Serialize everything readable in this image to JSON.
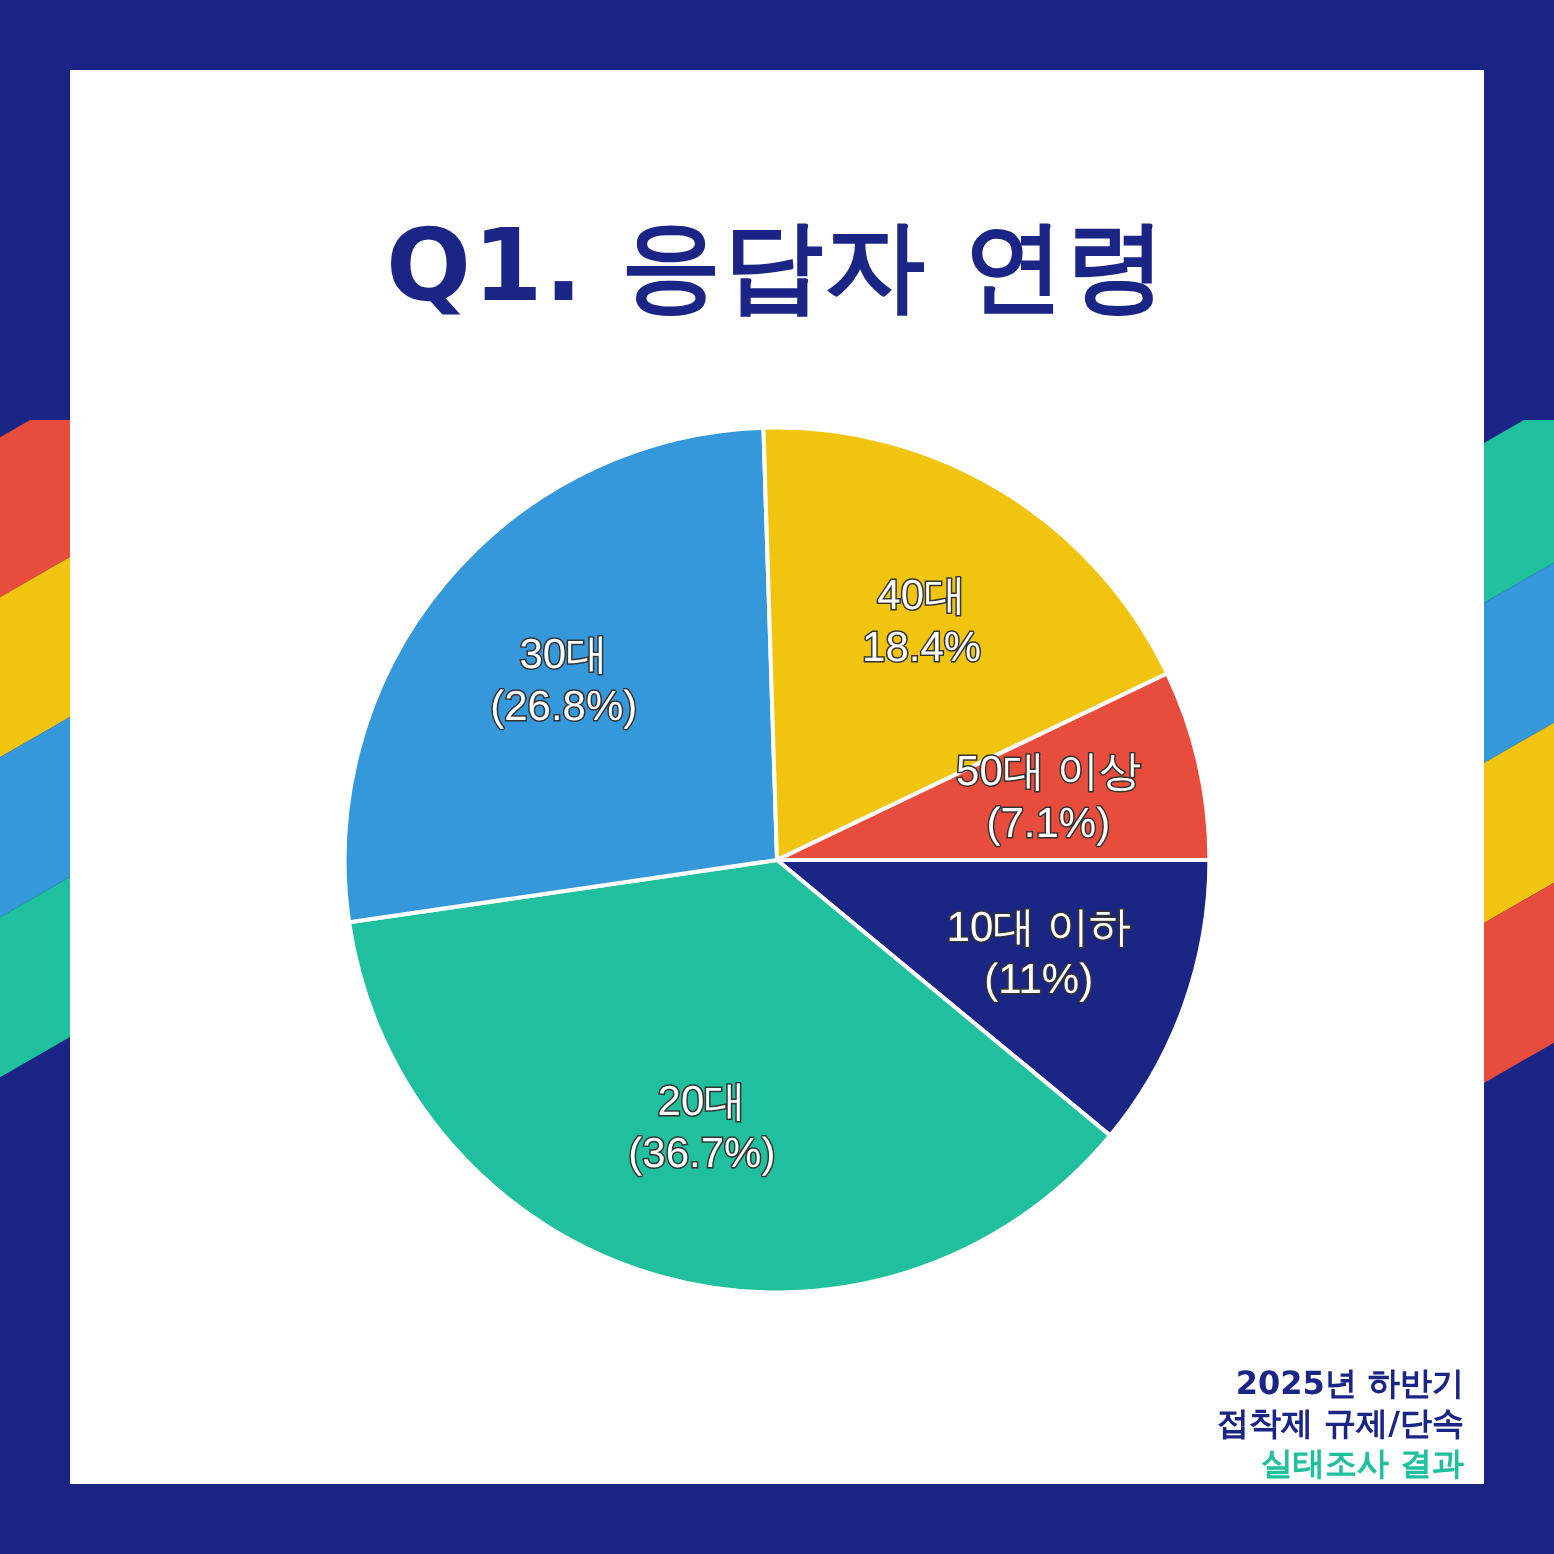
{
  "chart_data": {
    "type": "pie",
    "title": "Q1. 응답자 연령",
    "categories": [
      "10대 이하",
      "20대",
      "30대",
      "40대",
      "50대 이상"
    ],
    "values": [
      11,
      36.7,
      26.8,
      18.4,
      7.1
    ],
    "value_labels": [
      "(11%)",
      "(36.7%)",
      "(26.8%)",
      "18.4%",
      "(7.1%)"
    ],
    "colors": [
      "#1b2584",
      "#20bf9d",
      "#3498db",
      "#f1c40f",
      "#e74c3c"
    ],
    "legend": false,
    "annotations": [
      "2025년 하반기",
      "접착제 규제/단속",
      "실태조사 결과"
    ]
  }
}
